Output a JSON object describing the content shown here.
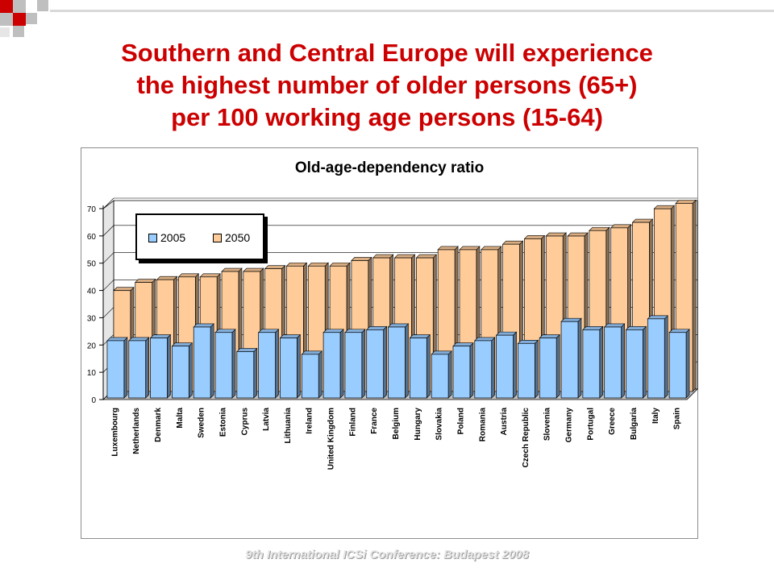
{
  "slide": {
    "title_lines": [
      "Southern and Central Europe will experience",
      "the highest number of older persons (65+)",
      "per 100 working age persons (15-64)"
    ],
    "footer": "9th International ICSi Conference: Budapest 2008"
  },
  "colors": {
    "title": "#cc0000",
    "bar_2005": "#99ccff",
    "bar_2050": "#ffcc99",
    "deco_red": "#cc0000",
    "deco_gray": "#bfbfbf"
  },
  "chart_data": {
    "type": "bar",
    "title": "Old-age-dependency ratio",
    "xlabel": "",
    "ylabel": "",
    "ylim": [
      0,
      70
    ],
    "yticks": [
      0,
      10,
      20,
      30,
      40,
      50,
      60,
      70
    ],
    "legend_position": "top-left",
    "grid": true,
    "categories": [
      "Luxembourg",
      "Netherlands",
      "Denmark",
      "Malta",
      "Sweden",
      "Estonia",
      "Cyprus",
      "Latvia",
      "Lithuania",
      "Ireland",
      "United Kingdom",
      "Finland",
      "France",
      "Belgium",
      "Hungary",
      "Slovakia",
      "Poland",
      "Romania",
      "Austria",
      "Czech Republic",
      "Slovenia",
      "Germany",
      "Portugal",
      "Greece",
      "Bulgaria",
      "Italy",
      "Spain"
    ],
    "series": [
      {
        "name": "2005",
        "values": [
          21,
          21,
          22,
          19,
          26,
          24,
          17,
          24,
          22,
          16,
          24,
          24,
          25,
          26,
          22,
          16,
          19,
          21,
          23,
          20,
          22,
          28,
          25,
          26,
          25,
          29,
          24
        ]
      },
      {
        "name": "2050",
        "values": [
          37,
          40,
          41,
          42,
          42,
          44,
          44,
          45,
          46,
          46,
          46,
          48,
          49,
          49,
          49,
          52,
          52,
          52,
          54,
          56,
          57,
          57,
          59,
          60,
          62,
          67,
          69
        ]
      }
    ]
  }
}
